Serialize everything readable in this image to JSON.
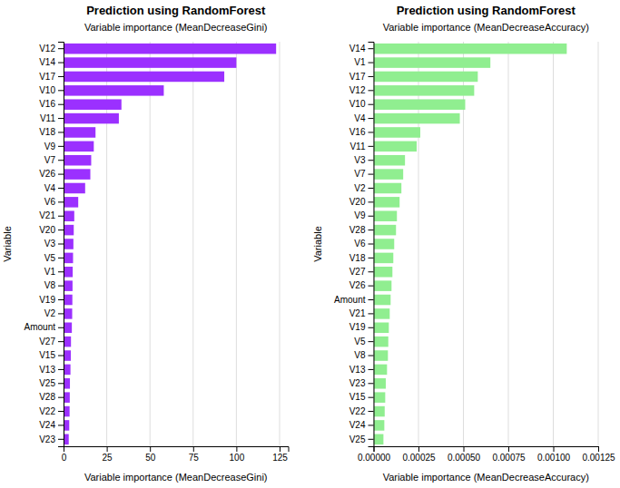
{
  "chart_data": [
    {
      "type": "bar",
      "orientation": "horizontal",
      "title": "Prediction using RandomForest",
      "subtitle": "Variable importance (MeanDecreaseGini)",
      "xlabel": "Variable importance (MeanDecreaseGini)",
      "ylabel": "Variable",
      "color": "#9b30ff",
      "categories": [
        "V23",
        "V24",
        "V22",
        "V28",
        "V25",
        "V13",
        "V15",
        "V27",
        "Amount",
        "V2",
        "V19",
        "V8",
        "V1",
        "V5",
        "V3",
        "V20",
        "V21",
        "V6",
        "V4",
        "V26",
        "V7",
        "V9",
        "V18",
        "V11",
        "V16",
        "V10",
        "V17",
        "V14",
        "V12"
      ],
      "values": [
        3.0,
        3.3,
        3.5,
        3.6,
        3.7,
        4.0,
        4.2,
        4.3,
        4.8,
        5.0,
        5.1,
        5.2,
        5.3,
        5.5,
        5.7,
        5.9,
        6.2,
        8.5,
        12.5,
        15.5,
        16.0,
        17.5,
        18.5,
        32.0,
        33.5,
        58.0,
        93.0,
        100.0,
        123.0
      ],
      "xlim": [
        0,
        130
      ],
      "xticks": [
        0,
        25,
        50,
        75,
        100,
        125
      ],
      "grid": true
    },
    {
      "type": "bar",
      "orientation": "horizontal",
      "title": "Prediction using RandomForest",
      "subtitle": "Variable importance (MeanDecreaseAccuracy)",
      "xlabel": "Variable importance (MeanDecreaseAccuracy)",
      "ylabel": "Variable",
      "color": "#90EE90",
      "categories": [
        "V25",
        "V24",
        "V22",
        "V15",
        "V23",
        "V13",
        "V8",
        "V5",
        "V19",
        "V21",
        "Amount",
        "V26",
        "V27",
        "V18",
        "V6",
        "V28",
        "V9",
        "V20",
        "V2",
        "V7",
        "V3",
        "V11",
        "V16",
        "V4",
        "V10",
        "V12",
        "V17",
        "V1",
        "V14"
      ],
      "values": [
        5.5e-05,
        6e-05,
        6.2e-05,
        6.5e-05,
        6.8e-05,
        7.5e-05,
        8e-05,
        8.2e-05,
        8.5e-05,
        9e-05,
        9.5e-05,
        0.0001,
        0.000105,
        0.00011,
        0.000115,
        0.000125,
        0.00013,
        0.000145,
        0.000155,
        0.000165,
        0.000175,
        0.00024,
        0.00026,
        0.00048,
        0.00051,
        0.00056,
        0.00058,
        0.00065,
        0.001075
      ],
      "xlim": [
        0,
        0.00125
      ],
      "xticks": [
        {
          "value": 0.0,
          "label": "0.00000"
        },
        {
          "value": 0.00025,
          "label": "0.00025"
        },
        {
          "value": 0.0005,
          "label": "0.00050"
        },
        {
          "value": 0.00075,
          "label": "0.00075"
        },
        {
          "value": 0.001,
          "label": "0.00100"
        },
        {
          "value": 0.00125,
          "label": "0.00125"
        }
      ],
      "grid": true
    }
  ]
}
